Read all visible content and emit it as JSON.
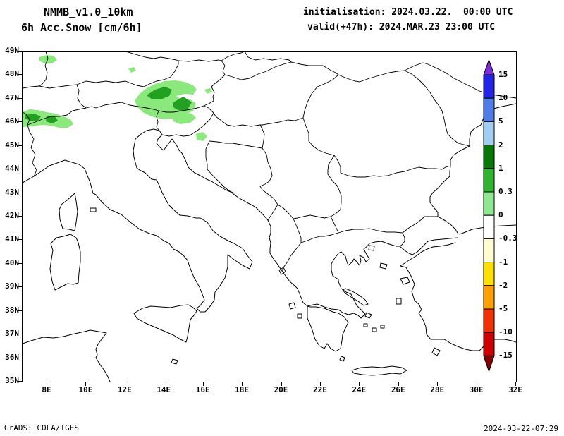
{
  "header": {
    "model": "NMMB_v1.0_10km",
    "field": "6h Acc.Snow [cm/6h]",
    "init": "initialisation: 2024.03.22.  00:00 UTC",
    "valid": "valid(+47h): 2024.MAR.23 23:00 UTC"
  },
  "map": {
    "lat_labels": [
      "49N",
      "48N",
      "47N",
      "46N",
      "45N",
      "44N",
      "43N",
      "42N",
      "41N",
      "40N",
      "39N",
      "38N",
      "37N",
      "36N",
      "35N"
    ],
    "lon_labels": [
      "8E",
      "10E",
      "12E",
      "14E",
      "16E",
      "18E",
      "20E",
      "22E",
      "24E",
      "26E",
      "28E",
      "30E",
      "32E"
    ]
  },
  "colorbar": {
    "tick_labels": [
      "15",
      "10",
      "5",
      "2",
      "1",
      "0.3",
      "0",
      "-0.3",
      "-1",
      "-2",
      "-5",
      "-10",
      "-15"
    ],
    "arrow_top_color": "#7f2ae0",
    "arrow_bottom_color": "#870000",
    "segment_colors": [
      "#2424e8",
      "#4f7de8",
      "#a2cdf2",
      "#067806",
      "#2fb42f",
      "#8fe88f",
      "#ffffff",
      "#fffdd0",
      "#ffdf00",
      "#ff9f00",
      "#f23000",
      "#cf0000"
    ]
  },
  "overlay": {
    "light_green": "#8ae87c",
    "dark_green": "#22a022"
  },
  "footer": {
    "credit": "GrADS: COLA/IGES",
    "timestamp": "2024-03-22-07:29"
  }
}
